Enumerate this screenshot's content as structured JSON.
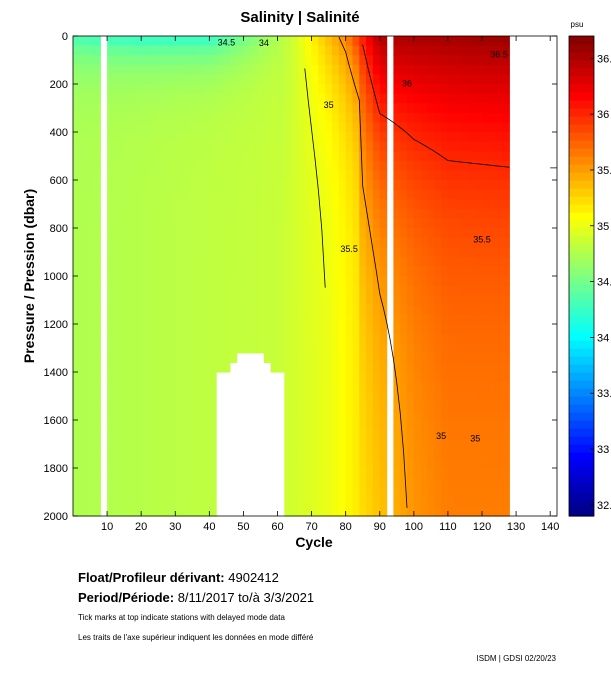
{
  "chart_data": {
    "type": "heatmap",
    "title": "Salinity | Salinité",
    "xlabel": "Cycle",
    "ylabel": "Pressure / Pression (dbar)",
    "xlim": [
      0,
      142
    ],
    "ylim": [
      2000,
      0
    ],
    "x_ticks": [
      "10",
      "20",
      "30",
      "40",
      "50",
      "60",
      "70",
      "80",
      "90",
      "100",
      "110",
      "120",
      "130",
      "140"
    ],
    "y_ticks": [
      "0",
      "200",
      "400",
      "600",
      "800",
      "1000",
      "1200",
      "1400",
      "1600",
      "1800",
      "2000"
    ],
    "colorbar": {
      "unit": "psu",
      "range": [
        32.4,
        36.7
      ],
      "ticks": [
        "32.5",
        "33",
        "33.5",
        "34",
        "34.5",
        "35",
        "35.5",
        "36",
        "36.5"
      ]
    },
    "contour_labels": [
      "34.5",
      "34",
      "35",
      "35.5",
      "36",
      "36.5"
    ],
    "fields": {
      "description_note": "",
      "deep_salinity_by_cycle": [
        [
          0,
          34.75
        ],
        [
          60,
          34.85
        ],
        [
          75,
          35.0
        ],
        [
          90,
          35.3
        ],
        [
          100,
          35.5
        ],
        [
          110,
          35.6
        ],
        [
          130,
          35.6
        ]
      ],
      "surface_salinity_by_cycle": [
        [
          0,
          34.3
        ],
        [
          20,
          34.2
        ],
        [
          40,
          34.2
        ],
        [
          55,
          34.6
        ],
        [
          65,
          34.9
        ],
        [
          80,
          35.6
        ],
        [
          90,
          36.5
        ],
        [
          130,
          36.6
        ]
      ]
    },
    "missing_data": {
      "empty_cycles": [
        9,
        93,
        140
      ],
      "gap_region_cycles": [
        42,
        62
      ],
      "gap_region_top_dbar": 1300
    },
    "colors": {
      "lowest": "#00008f",
      "mid": "#fefe00",
      "highest": "#800000"
    }
  },
  "info": {
    "float_label": "Float/Profileur dérivant:",
    "float_value": "4902412",
    "period_label": "Period/Période:",
    "period_value": "8/11/2017  to/à  3/3/2021",
    "note_en": "Tick marks at top indicate stations with delayed mode data",
    "note_fr": "Les traits de l'axe supérieur indiquent les données en mode différé",
    "credit": "ISDM | GDSI  02/20/23"
  }
}
